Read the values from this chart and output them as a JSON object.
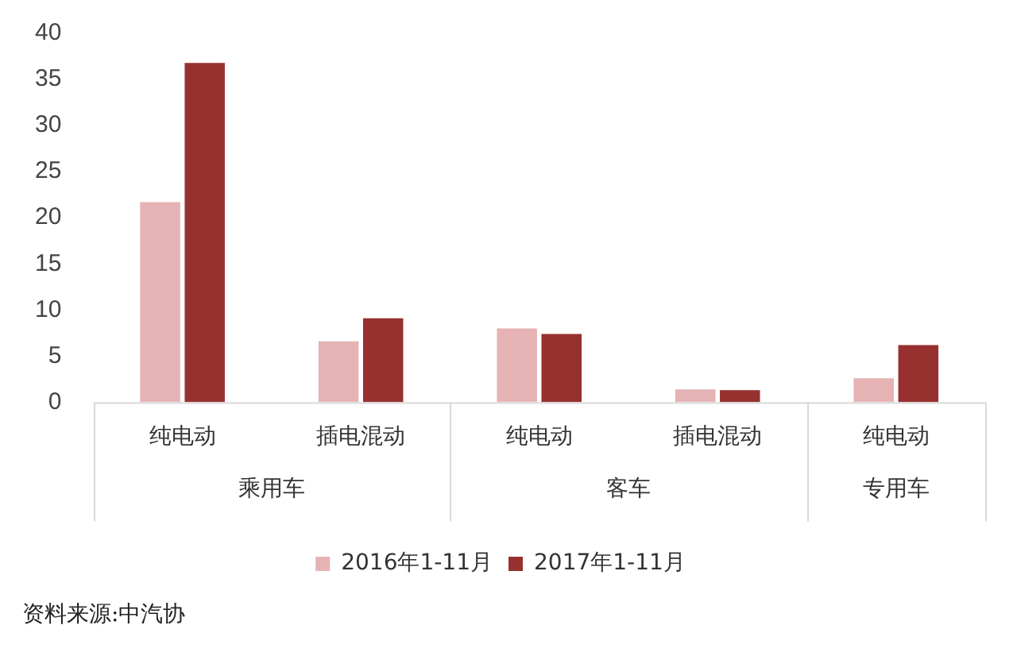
{
  "chart_data": {
    "type": "bar",
    "categories": [
      "纯电动",
      "插电混动",
      "纯电动",
      "插电混动",
      "纯电动"
    ],
    "series": [
      {
        "name": "2016年1-11月",
        "color": "#e6b3b5",
        "values": [
          21.7,
          6.6,
          8.0,
          1.4,
          2.6
        ]
      },
      {
        "name": "2017年1-11月",
        "color": "#96312f",
        "values": [
          36.8,
          9.1,
          7.4,
          1.3,
          6.2
        ]
      }
    ],
    "ylim": [
      0,
      40
    ],
    "yticks": [
      0,
      5,
      10,
      15,
      20,
      25,
      30,
      35,
      40
    ],
    "grid": false,
    "legend": "bottom",
    "annotations": [
      "乘用车",
      "客车",
      "专用车",
      "资料来源:中汽协"
    ]
  }
}
